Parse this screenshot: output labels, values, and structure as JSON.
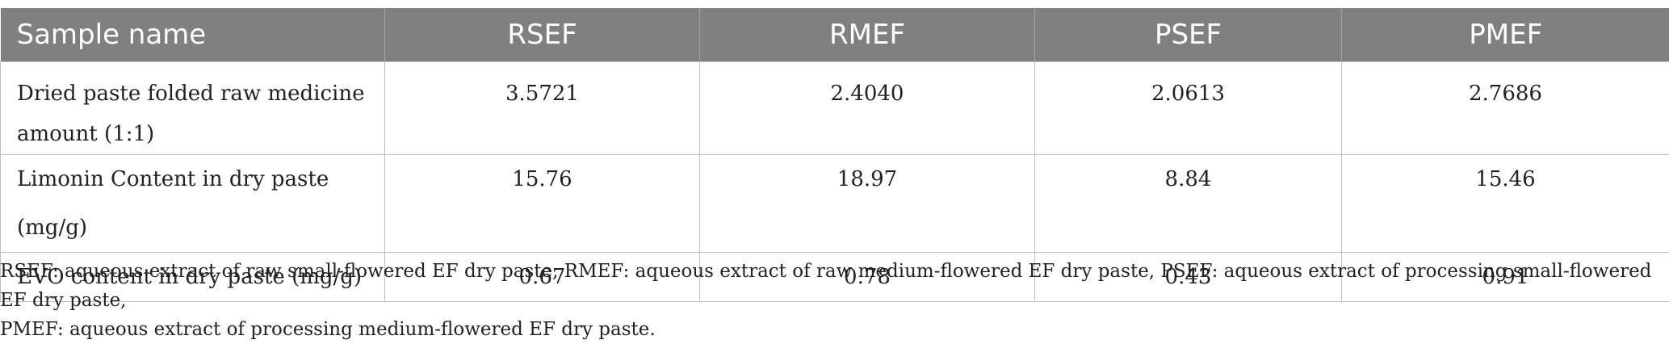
{
  "table": {
    "headers": [
      "Sample name",
      "RSEF",
      "RMEF",
      "PSEF",
      "PMEF"
    ],
    "rows": [
      {
        "label_line1": "Dried paste folded raw medicine",
        "label_line2": "amount (1:1)",
        "values": [
          "3.5721",
          "2.4040",
          "2.0613",
          "2.7686"
        ]
      },
      {
        "label": "Limonin Content in dry paste (mg/g)",
        "values": [
          "15.76",
          "18.97",
          "8.84",
          "15.46"
        ]
      },
      {
        "label": "EVO content in dry paste (mg/g)",
        "values": [
          "0.67",
          "0.78",
          "0.43",
          "0.91"
        ]
      }
    ]
  },
  "footnote": {
    "line1": "RSEF: aqueous extract of raw small-flowered EF dry paste, RMEF: aqueous extract of raw medium-flowered EF dry paste, PSEF: aqueous extract of processing small-flowered EF dry paste,",
    "line2": "PMEF: aqueous extract of processing medium-flowered EF dry paste."
  }
}
